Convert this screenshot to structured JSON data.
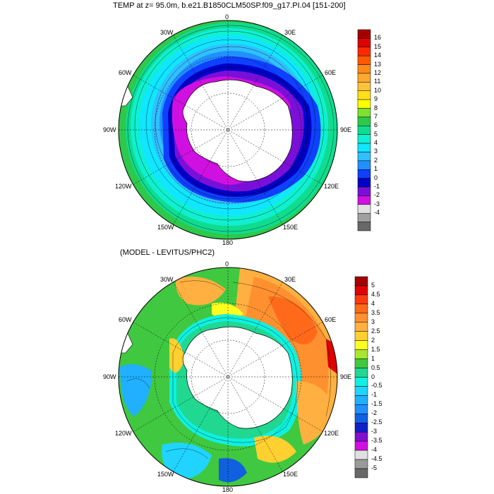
{
  "panels": [
    {
      "title": "TEMP at z=  95.0m, b.e21.B1850CLM50SP.f09_g17.PI.04 [151-200]",
      "lon_labels": {
        "n": "0",
        "ne": "30E",
        "en": "60E",
        "e": "90E",
        "es": "120E",
        "se": "150E",
        "s": "180",
        "sw": "150W",
        "ws": "120W",
        "w": "90W",
        "wn": "60W",
        "nw": "30W"
      },
      "colorbar": {
        "levels": [
          "16",
          "15",
          "14",
          "13",
          "12",
          "11",
          "10",
          "9",
          "8",
          "7",
          "6",
          "5",
          "4",
          "3",
          "2",
          "1",
          "0",
          "-1",
          "-2",
          "-3",
          "-4"
        ],
        "colors": [
          "#a50000",
          "#e00000",
          "#ff2a00",
          "#ff5a00",
          "#ff8c1a",
          "#ffa830",
          "#ffc23e",
          "#ffe01a",
          "#ffff00",
          "#7fe030",
          "#2ec84a",
          "#10dc90",
          "#10f0d0",
          "#10e6ff",
          "#30c0ff",
          "#2090ff",
          "#1040ff",
          "#0000c8",
          "#7a10d8",
          "#d010e0",
          "#e0e0e0",
          "#a0a0a0",
          "#686868"
        ]
      }
    },
    {
      "title": "(MODEL - LEVITUS/PHC2)",
      "lon_labels": {
        "n": "0",
        "ne": "30E",
        "en": "60E",
        "e": "90E",
        "es": "120E",
        "se": "150E",
        "s": "180",
        "sw": "150W",
        "ws": "120W",
        "w": "90W",
        "wn": "60W",
        "nw": "30W"
      },
      "colorbar": {
        "levels": [
          "5",
          "4.5",
          "4",
          "3.5",
          "3",
          "2.5",
          "2",
          "1.5",
          "1",
          "0.5",
          "0",
          "-0.5",
          "-1",
          "-1.5",
          "-2",
          "-2.5",
          "-3",
          "-3.5",
          "-4",
          "-4.5",
          "-5"
        ],
        "colors": [
          "#a50000",
          "#e00000",
          "#ff3a10",
          "#ff6a1a",
          "#ff9030",
          "#ffb040",
          "#ffd030",
          "#ffff20",
          "#a8e630",
          "#40c840",
          "#20d890",
          "#10f0e0",
          "#20d4ff",
          "#20b0ff",
          "#2090ff",
          "#1060e0",
          "#1020c8",
          "#8010d0",
          "#d010e0",
          "#e0e0e0",
          "#9a9a9a",
          "#686868"
        ]
      }
    }
  ]
}
